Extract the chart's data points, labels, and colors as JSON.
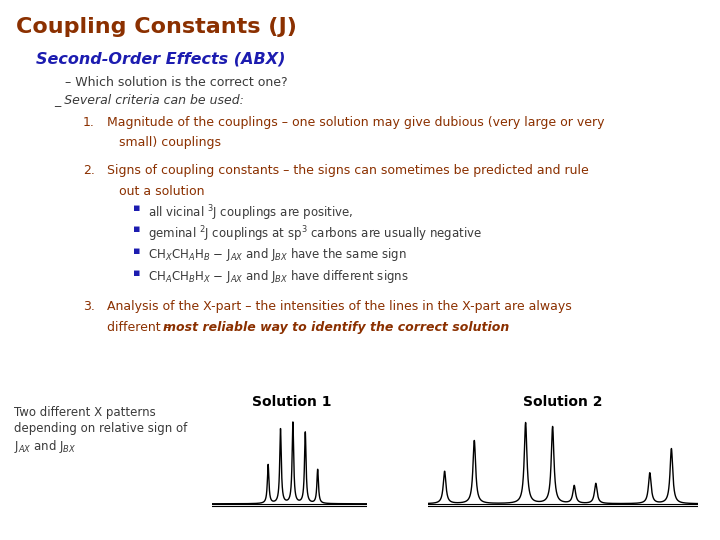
{
  "title": "Coupling Constants (J)",
  "title_color": "#8B3000",
  "title_fontsize": 16,
  "bg_color": "#FFFFFF",
  "subtitle": "Second-Order Effects (ABX)",
  "subtitle_color": "#1C1CB0",
  "subtitle_fontsize": 11.5,
  "dash_line": "– Which solution is the correct one?",
  "dash_line2": "_ Several criteria can be used:",
  "text_color": "#3A3A3A",
  "brown_color": "#8B3000",
  "blue_color": "#1C1CB0",
  "bullet_color": "#1C1CB0",
  "item_color": "#8B3000",
  "subitem_color": "#3A3A3A",
  "solution1_label": "Solution 1",
  "solution2_label": "Solution 2",
  "left_text_line1": "Two different X patterns",
  "left_text_line2": "depending on relative sign of",
  "left_text_line3": "J$_{AX}$ and J$_{BX}$"
}
